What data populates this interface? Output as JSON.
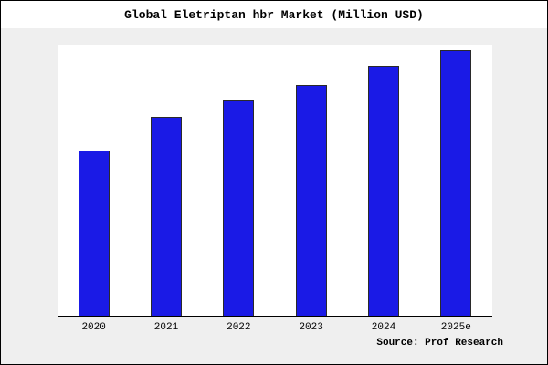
{
  "title": "Global Eletriptan hbr Market (Million USD)",
  "source": "Source: Prof Research",
  "chart_data": {
    "type": "bar",
    "title": "Global Eletriptan hbr Market (Million USD)",
    "categories": [
      "2020",
      "2021",
      "2022",
      "2023",
      "2024",
      "2025e"
    ],
    "values": [
      62,
      75,
      81,
      87,
      94,
      100
    ],
    "xlabel": "",
    "ylabel": "",
    "ylim": [
      0,
      102
    ],
    "grid": false,
    "legend_position": "none",
    "bar_color": "#1a1ae6",
    "bar_edge_color": "#2a2a2a",
    "plot_background": "#ffffff",
    "outer_background": "#efefef"
  }
}
